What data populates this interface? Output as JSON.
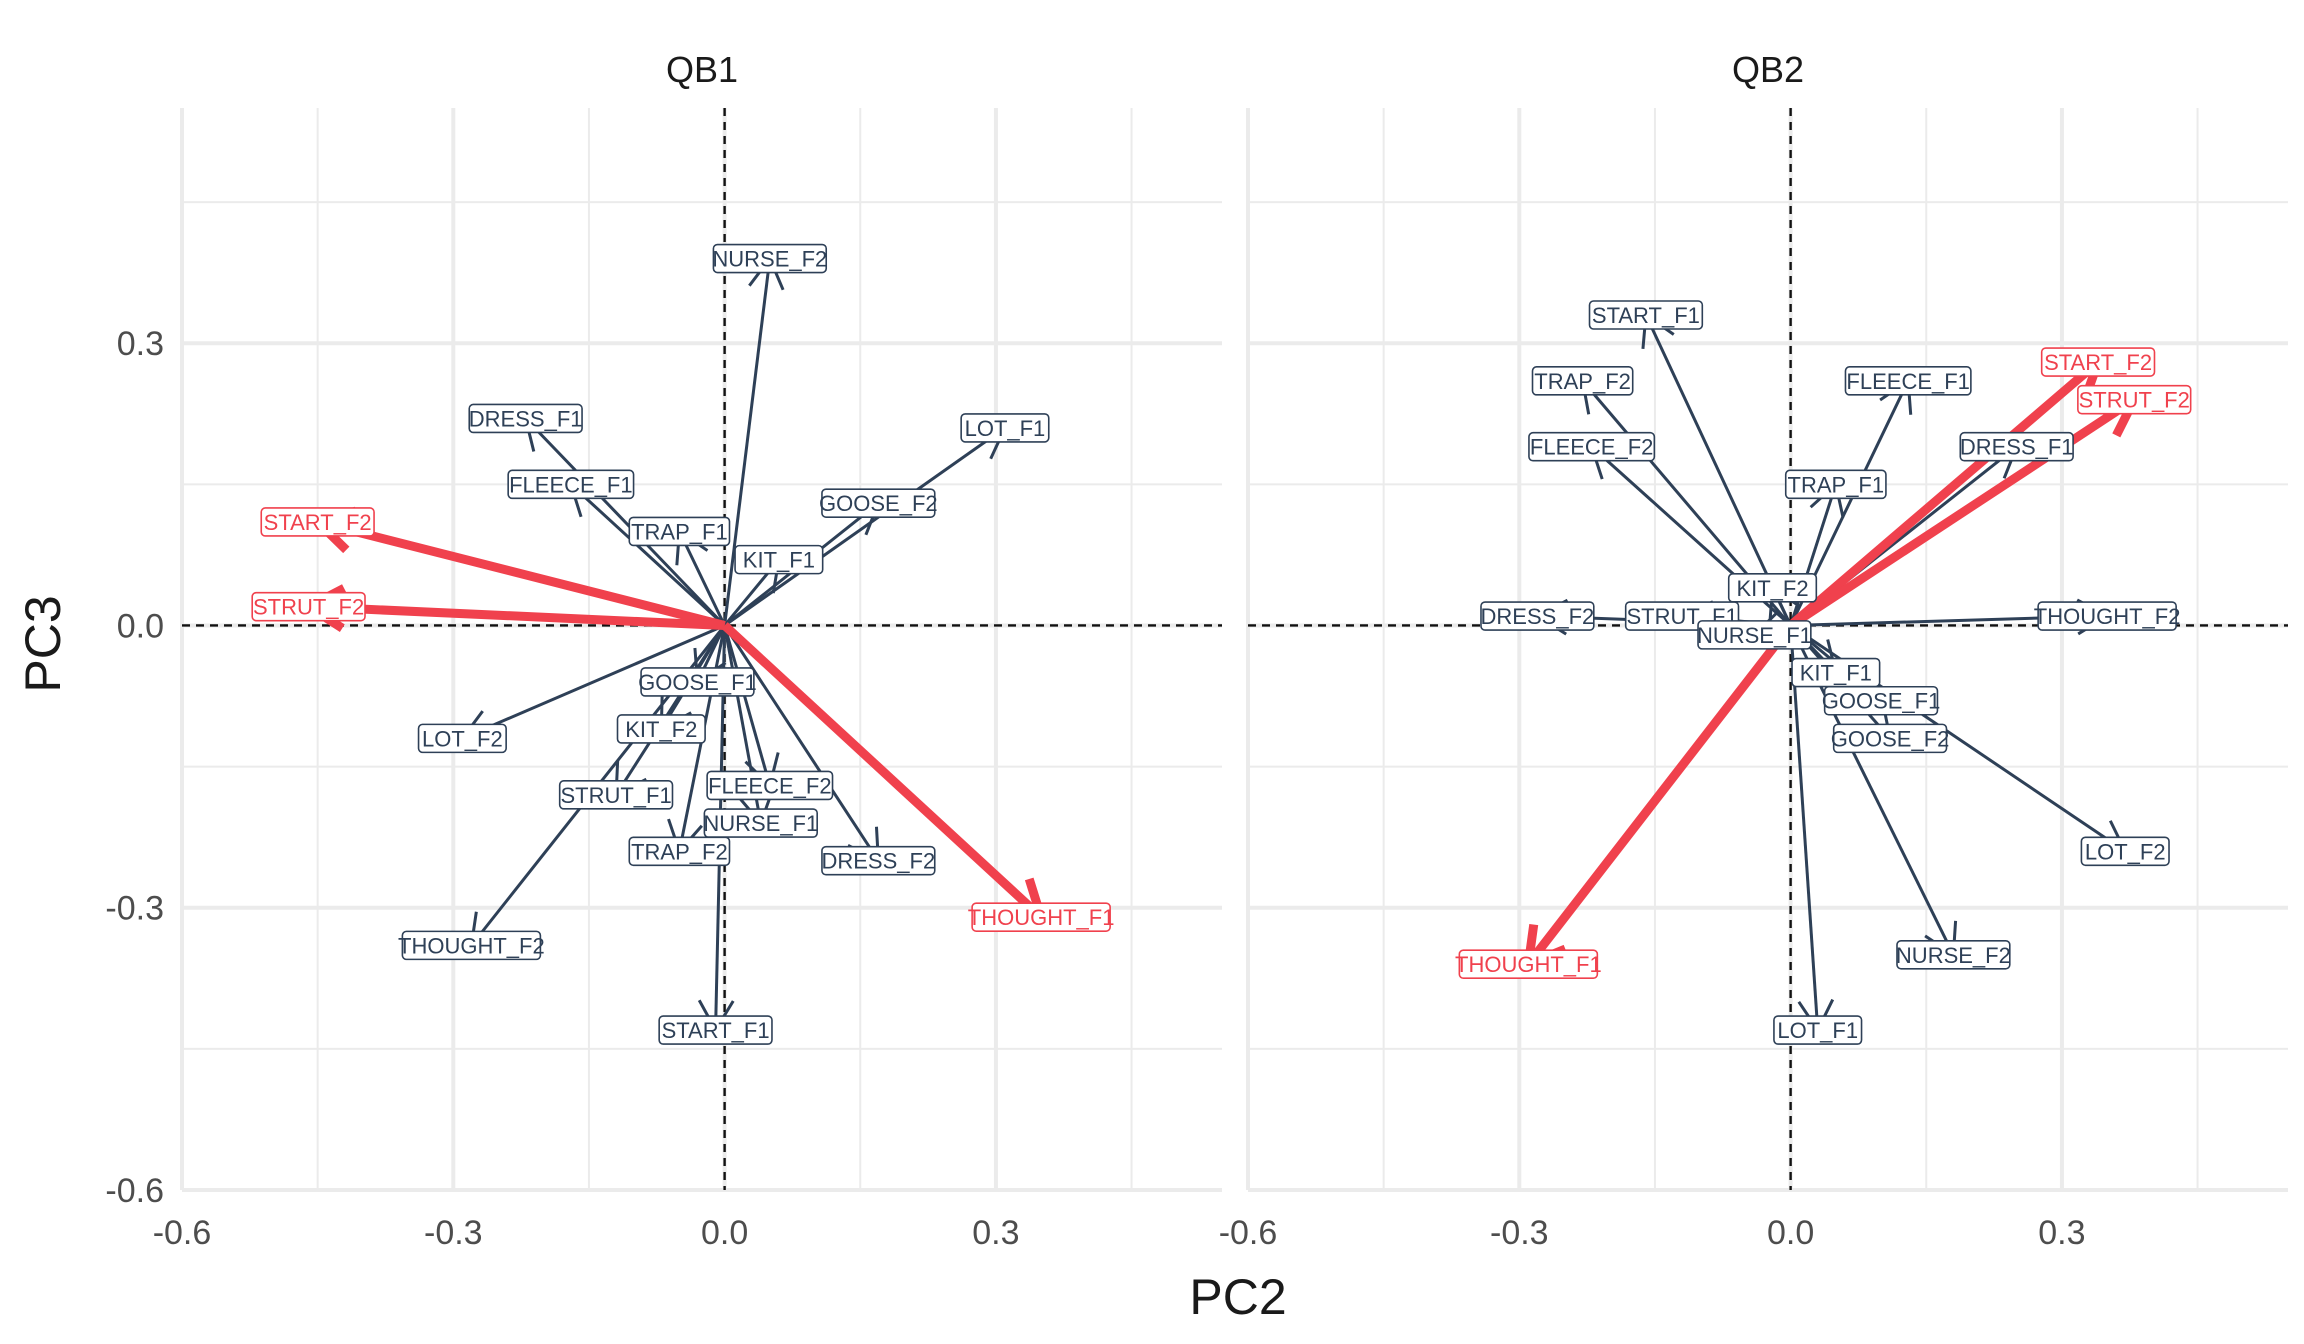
{
  "chart_data": {
    "type": "biplot",
    "xlabel": "PC2",
    "ylabel": "PC3",
    "xlim": [
      -0.6,
      0.55
    ],
    "ylim": [
      -0.6,
      0.55
    ],
    "x_ticks": [
      -0.6,
      -0.3,
      0.0,
      0.3
    ],
    "y_ticks": [
      -0.6,
      -0.3,
      0.0,
      0.3
    ],
    "x_tick_labels": [
      "-0.6",
      "-0.3",
      "0.0",
      "0.3"
    ],
    "y_tick_labels": [
      "-0.6",
      "-0.3",
      "0.0",
      "0.3"
    ],
    "grid": true,
    "reference_lines": "dashed at x=0 and y=0",
    "colors": {
      "normal": "#2e4057",
      "highlight": "#f0414d",
      "grid": "#ebebeb"
    },
    "panels": [
      {
        "title": "QB1",
        "vectors": [
          {
            "label": "NURSE_F2",
            "x": 0.05,
            "y": 0.39,
            "highlight": false
          },
          {
            "label": "DRESS_F1",
            "x": -0.22,
            "y": 0.22,
            "highlight": false
          },
          {
            "label": "LOT_F1",
            "x": 0.31,
            "y": 0.21,
            "highlight": false
          },
          {
            "label": "FLEECE_F1",
            "x": -0.17,
            "y": 0.15,
            "highlight": false
          },
          {
            "label": "GOOSE_F2",
            "x": 0.17,
            "y": 0.13,
            "highlight": false
          },
          {
            "label": "START_F2",
            "x": -0.45,
            "y": 0.11,
            "highlight": true
          },
          {
            "label": "TRAP_F1",
            "x": -0.05,
            "y": 0.1,
            "highlight": false
          },
          {
            "label": "KIT_F1",
            "x": 0.06,
            "y": 0.07,
            "highlight": false
          },
          {
            "label": "STRUT_F2",
            "x": -0.46,
            "y": 0.02,
            "highlight": true
          },
          {
            "label": "GOOSE_F1",
            "x": -0.03,
            "y": -0.06,
            "highlight": false
          },
          {
            "label": "LOT_F2",
            "x": -0.29,
            "y": -0.12,
            "highlight": false
          },
          {
            "label": "KIT_F2",
            "x": -0.07,
            "y": -0.11,
            "highlight": false
          },
          {
            "label": "STRUT_F1",
            "x": -0.12,
            "y": -0.18,
            "highlight": false
          },
          {
            "label": "FLEECE_F2",
            "x": 0.05,
            "y": -0.17,
            "highlight": false
          },
          {
            "label": "NURSE_F1",
            "x": 0.04,
            "y": -0.21,
            "highlight": false
          },
          {
            "label": "TRAP_F2",
            "x": -0.05,
            "y": -0.24,
            "highlight": false
          },
          {
            "label": "DRESS_F2",
            "x": 0.17,
            "y": -0.25,
            "highlight": false
          },
          {
            "label": "THOUGHT_F1",
            "x": 0.35,
            "y": -0.31,
            "highlight": true
          },
          {
            "label": "THOUGHT_F2",
            "x": -0.28,
            "y": -0.34,
            "highlight": false
          },
          {
            "label": "START_F1",
            "x": -0.01,
            "y": -0.43,
            "highlight": false
          }
        ]
      },
      {
        "title": "QB2",
        "vectors": [
          {
            "label": "START_F1",
            "x": -0.16,
            "y": 0.33,
            "highlight": false
          },
          {
            "label": "TRAP_F2",
            "x": -0.23,
            "y": 0.26,
            "highlight": false
          },
          {
            "label": "FLEECE_F1",
            "x": 0.13,
            "y": 0.26,
            "highlight": false
          },
          {
            "label": "START_F2",
            "x": 0.34,
            "y": 0.28,
            "highlight": true
          },
          {
            "label": "STRUT_F2",
            "x": 0.38,
            "y": 0.24,
            "highlight": true
          },
          {
            "label": "FLEECE_F2",
            "x": -0.22,
            "y": 0.19,
            "highlight": false
          },
          {
            "label": "DRESS_F1",
            "x": 0.25,
            "y": 0.19,
            "highlight": false
          },
          {
            "label": "TRAP_F1",
            "x": 0.05,
            "y": 0.15,
            "highlight": false
          },
          {
            "label": "KIT_F2",
            "x": -0.02,
            "y": 0.04,
            "highlight": false
          },
          {
            "label": "DRESS_F2",
            "x": -0.28,
            "y": 0.01,
            "highlight": false
          },
          {
            "label": "STRUT_F1",
            "x": -0.12,
            "y": 0.01,
            "highlight": false
          },
          {
            "label": "NURSE_F1",
            "x": -0.04,
            "y": -0.01,
            "highlight": false
          },
          {
            "label": "THOUGHT_F2",
            "x": 0.35,
            "y": 0.01,
            "highlight": false
          },
          {
            "label": "KIT_F1",
            "x": 0.05,
            "y": -0.05,
            "highlight": false
          },
          {
            "label": "GOOSE_F1",
            "x": 0.1,
            "y": -0.08,
            "highlight": false
          },
          {
            "label": "GOOSE_F2",
            "x": 0.11,
            "y": -0.12,
            "highlight": false
          },
          {
            "label": "LOT_F2",
            "x": 0.37,
            "y": -0.24,
            "highlight": false
          },
          {
            "label": "THOUGHT_F1",
            "x": -0.29,
            "y": -0.36,
            "highlight": true
          },
          {
            "label": "NURSE_F2",
            "x": 0.18,
            "y": -0.35,
            "highlight": false
          },
          {
            "label": "LOT_F1",
            "x": 0.03,
            "y": -0.43,
            "highlight": false
          }
        ]
      }
    ]
  }
}
